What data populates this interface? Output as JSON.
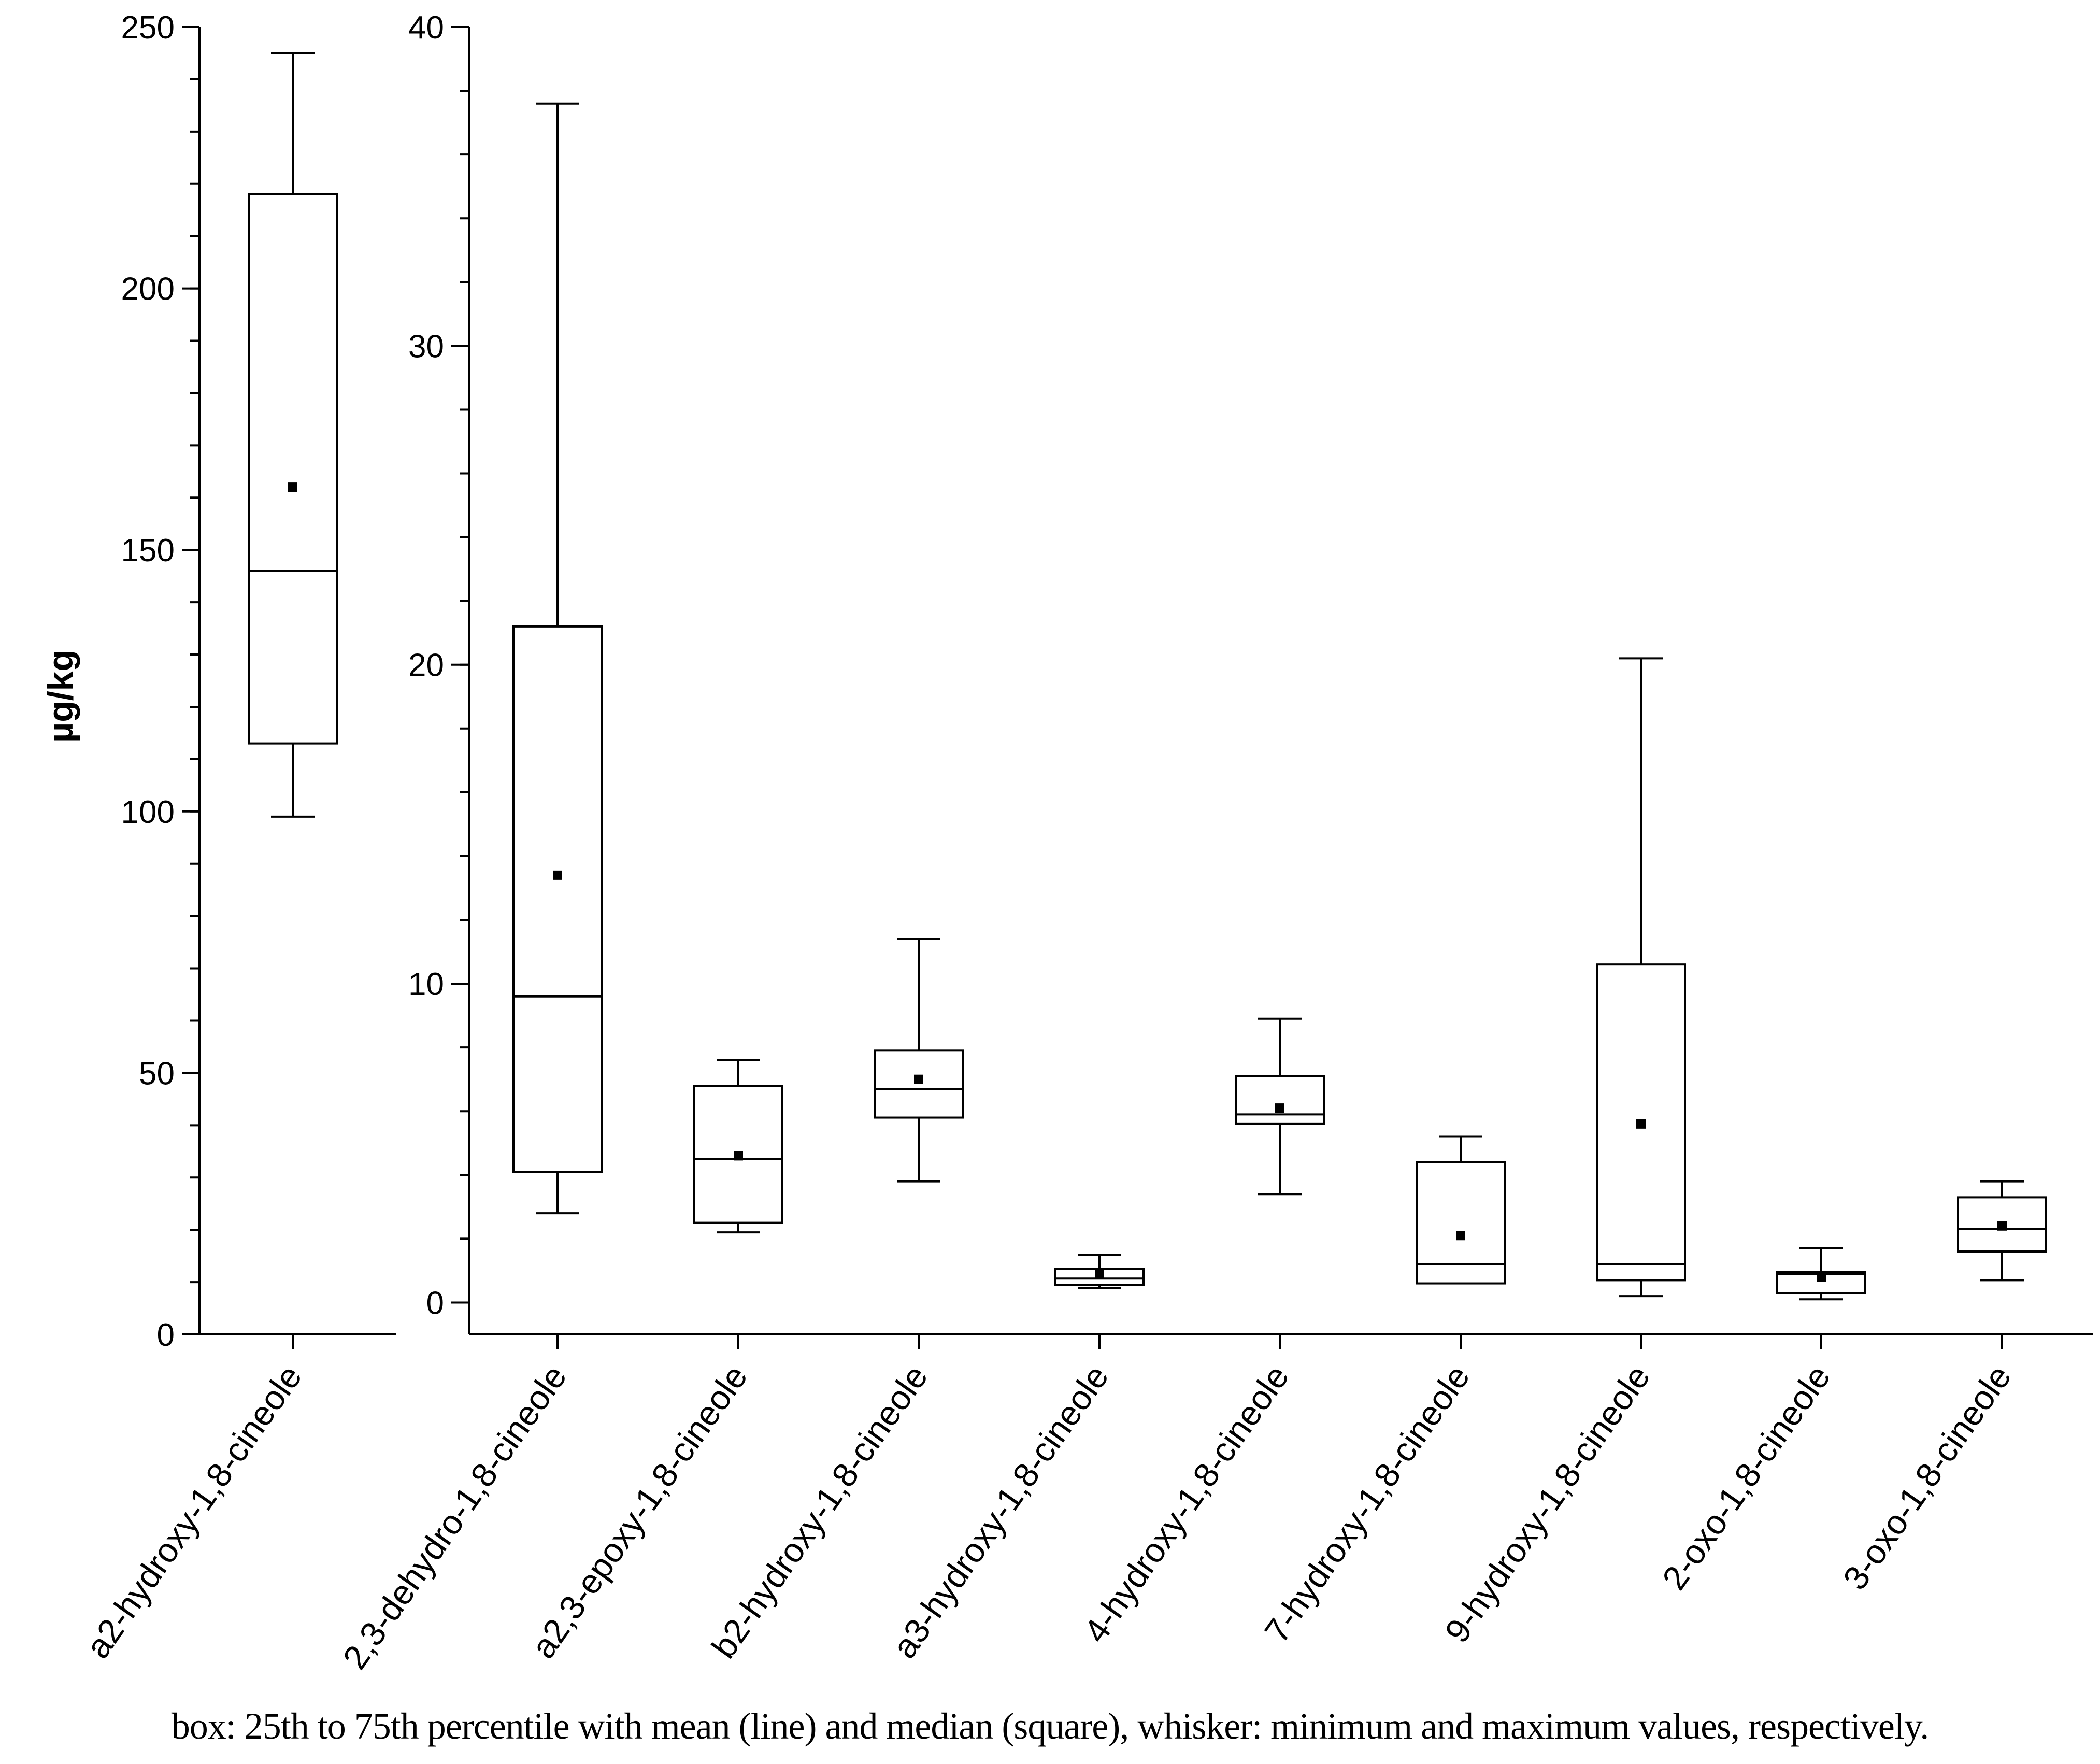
{
  "chart_data": [
    {
      "type": "box",
      "panel": "left",
      "ylabel": "µg/kg",
      "ylim": [
        0,
        250
      ],
      "yticks": [
        0,
        50,
        100,
        150,
        200,
        250
      ],
      "ytick_labels": [
        "0",
        "50",
        "100",
        "150",
        "200",
        "250"
      ],
      "y_minor_step": 10,
      "categories": [
        "a2-hydroxy-1,8-cineole"
      ],
      "boxes": [
        {
          "min": 99,
          "q1": 113,
          "line": 146,
          "q3": 218,
          "max": 245,
          "square": 162
        }
      ]
    },
    {
      "type": "box",
      "panel": "right",
      "ylim": [
        -1,
        40
      ],
      "yticks": [
        0,
        10,
        20,
        30,
        40
      ],
      "ytick_labels": [
        "0",
        "10",
        "20",
        "30",
        "40"
      ],
      "y_minor_step": 2,
      "categories": [
        "2,3-dehydro-1,8-cineole",
        "a2,3-epoxy-1,8-cineole",
        "b2-hydroxy-1,8-cineole",
        "a3-hydroxy-1,8-cineole",
        "4-hydroxy-1,8-cineole",
        "7-hydroxy-1,8-cineole",
        "9-hydroxy-1,8-cineole",
        "2-oxo-1,8-cineole",
        "3-oxo-1,8-cineole"
      ],
      "boxes": [
        {
          "min": 2.8,
          "q1": 4.1,
          "line": 9.6,
          "q3": 21.2,
          "max": 37.6,
          "square": 13.4
        },
        {
          "min": 2.2,
          "q1": 2.5,
          "line": 4.5,
          "q3": 6.8,
          "max": 7.6,
          "square": 4.6
        },
        {
          "min": 3.8,
          "q1": 5.8,
          "line": 6.7,
          "q3": 7.9,
          "max": 11.4,
          "square": 7.0
        },
        {
          "min": 0.45,
          "q1": 0.55,
          "line": 0.75,
          "q3": 1.05,
          "max": 1.5,
          "square": 0.9
        },
        {
          "min": 3.4,
          "q1": 5.6,
          "line": 5.9,
          "q3": 7.1,
          "max": 8.9,
          "square": 6.1
        },
        {
          "min": 0.6,
          "q1": 0.6,
          "line": 1.2,
          "q3": 4.4,
          "max": 5.2,
          "square": 2.1
        },
        {
          "min": 0.2,
          "q1": 0.7,
          "line": 1.2,
          "q3": 10.6,
          "max": 20.2,
          "square": 5.6
        },
        {
          "min": 0.1,
          "q1": 0.3,
          "line": 0.9,
          "q3": 0.95,
          "max": 1.7,
          "square": 0.8
        },
        {
          "min": 0.7,
          "q1": 1.6,
          "line": 2.3,
          "q3": 3.3,
          "max": 3.8,
          "square": 2.4
        }
      ]
    }
  ],
  "caption": "box: 25th to 75th percentile with mean (line) and median (square), whisker: minimum and maximum values, respectively."
}
